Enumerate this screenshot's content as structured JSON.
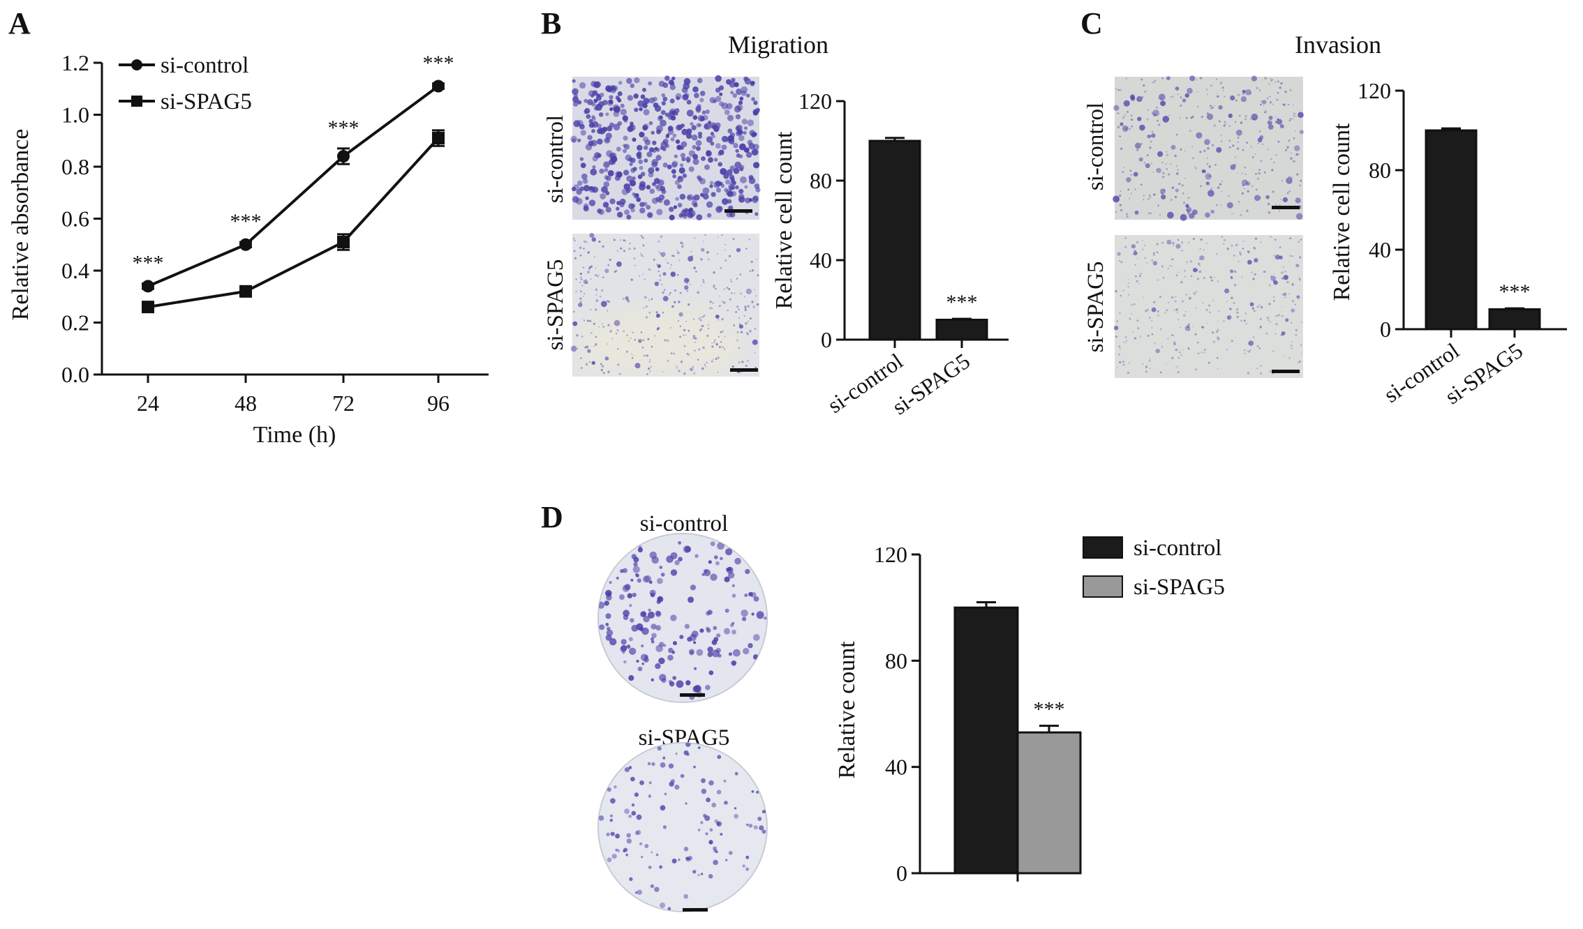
{
  "colors": {
    "si_control": "#1b1b1b",
    "si_spag5": "#999999",
    "stain": "#4b3fa8",
    "field_bg": "#dcdfe7"
  },
  "panels": {
    "A": {
      "letter": "A"
    },
    "B": {
      "letter": "B",
      "title": "Migration",
      "img_row1": "si-control",
      "img_row2": "si-SPAG5"
    },
    "C": {
      "letter": "C",
      "title": "Invasion",
      "img_row1": "si-control",
      "img_row2": "si-SPAG5"
    },
    "D": {
      "letter": "D",
      "img_top": "si-control",
      "img_bottom": "si-SPAG5"
    }
  },
  "chart_data": [
    {
      "panel": "A",
      "type": "line",
      "title": "",
      "xlabel": "Time (h)",
      "ylabel": "Relative absorbance",
      "x": [
        24,
        48,
        72,
        96
      ],
      "ylim": [
        0,
        1.2
      ],
      "yticks": [
        0.0,
        0.2,
        0.4,
        0.6,
        0.8,
        1.0,
        1.2
      ],
      "ytick_labels": [
        "0.0",
        "0.2",
        "0.4",
        "0.6",
        "0.8",
        "1.0",
        "1.2"
      ],
      "series": [
        {
          "name": "si-control",
          "marker": "circle",
          "values": [
            0.34,
            0.5,
            0.84,
            1.11
          ],
          "errors": [
            0.01,
            0.01,
            0.03,
            0.01
          ]
        },
        {
          "name": "si-SPAG5",
          "marker": "square",
          "values": [
            0.26,
            0.32,
            0.51,
            0.91
          ],
          "errors": [
            0.01,
            0.01,
            0.03,
            0.03
          ]
        }
      ],
      "annotations": [
        "***",
        "***",
        "***",
        "***"
      ],
      "legend": "top-left",
      "grid": false
    },
    {
      "panel": "B",
      "type": "bar",
      "title": "",
      "xlabel": "",
      "ylabel": "Relative cell count",
      "categories": [
        "si-control",
        "si-SPAG5"
      ],
      "values": [
        100,
        10
      ],
      "errors": [
        1.5,
        0.5
      ],
      "ylim": [
        0,
        120
      ],
      "yticks": [
        0,
        40,
        80,
        120
      ],
      "annotations": [
        "",
        "***"
      ]
    },
    {
      "panel": "C",
      "type": "bar",
      "title": "",
      "xlabel": "",
      "ylabel": "Relative cell count",
      "categories": [
        "si-control",
        "si-SPAG5"
      ],
      "values": [
        100,
        10
      ],
      "errors": [
        1,
        0.5
      ],
      "ylim": [
        0,
        120
      ],
      "yticks": [
        0,
        40,
        80,
        120
      ],
      "annotations": [
        "",
        "***"
      ]
    },
    {
      "panel": "D",
      "type": "bar",
      "title": "",
      "xlabel": "",
      "ylabel": "Relative count",
      "categories": [
        "si-control",
        "si-SPAG5"
      ],
      "values": [
        100,
        53
      ],
      "errors": [
        2,
        2.5
      ],
      "ylim": [
        0,
        120
      ],
      "yticks": [
        0,
        40,
        80,
        120
      ],
      "annotations": [
        "",
        "***"
      ],
      "legend": "top-right",
      "legend_entries": [
        "si-control",
        "si-SPAG5"
      ]
    }
  ]
}
